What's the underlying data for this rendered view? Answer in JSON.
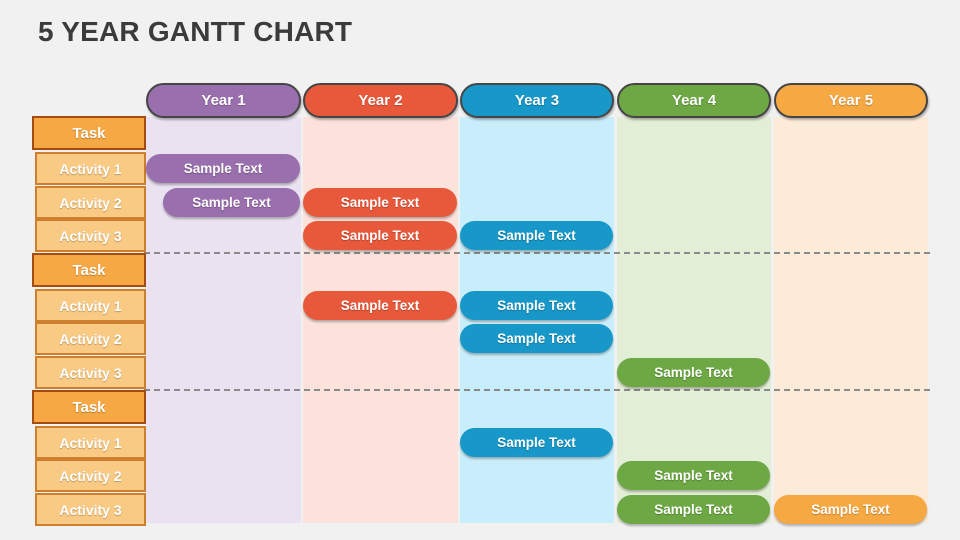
{
  "title": "5 YEAR GANTT CHART",
  "title_color": "#3B3B3B",
  "slide_background": "#F1F1F1",
  "chart_data": {
    "type": "gantt",
    "title": "5 YEAR GANTT CHART",
    "legend_position": "none",
    "grid": "dashed group dividers",
    "columns": [
      {
        "label": "Year 1",
        "color": "#9A6FAE",
        "track_color": "#EAE2F0"
      },
      {
        "label": "Year 2",
        "color": "#E8593C",
        "track_color": "#FBE2DB"
      },
      {
        "label": "Year 3",
        "color": "#1898C8",
        "track_color": "#C9EEFB"
      },
      {
        "label": "Year 4",
        "color": "#6EA845",
        "track_color": "#E3EED6"
      },
      {
        "label": "Year 5",
        "color": "#F6A843",
        "track_color": "#FBEBD8"
      }
    ],
    "row_header": {
      "task_fill": "#F5A843",
      "task_border": "#A34B10",
      "activity_fill": "#F9CA84",
      "activity_border": "#CE7F2E",
      "divider_color": "#8A8A8A"
    },
    "groups": [
      {
        "task": "Task",
        "activities": [
          {
            "name": "Activity 1",
            "bars": [
              {
                "label": "Sample Text",
                "year": "Year 1"
              }
            ]
          },
          {
            "name": "Activity 2",
            "bars": [
              {
                "label": "Sample Text",
                "year": "Year 1",
                "partial_start": true
              },
              {
                "label": "Sample Text",
                "year": "Year 2"
              }
            ]
          },
          {
            "name": "Activity 3",
            "bars": [
              {
                "label": "Sample Text",
                "year": "Year 2"
              },
              {
                "label": "Sample Text",
                "year": "Year 3"
              }
            ]
          }
        ]
      },
      {
        "task": "Task",
        "activities": [
          {
            "name": "Activity 1",
            "bars": [
              {
                "label": "Sample Text",
                "year": "Year 2"
              },
              {
                "label": "Sample Text",
                "year": "Year 3"
              }
            ]
          },
          {
            "name": "Activity 2",
            "bars": [
              {
                "label": "Sample Text",
                "year": "Year 3"
              }
            ]
          },
          {
            "name": "Activity 3",
            "bars": [
              {
                "label": "Sample Text",
                "year": "Year 4"
              }
            ]
          }
        ]
      },
      {
        "task": "Task",
        "activities": [
          {
            "name": "Activity 1",
            "bars": [
              {
                "label": "Sample Text",
                "year": "Year 3"
              }
            ]
          },
          {
            "name": "Activity 2",
            "bars": [
              {
                "label": "Sample Text",
                "year": "Year 4"
              }
            ]
          },
          {
            "name": "Activity 3",
            "bars": [
              {
                "label": "Sample Text",
                "year": "Year 4"
              },
              {
                "label": "Sample Text",
                "year": "Year 5"
              }
            ]
          }
        ]
      }
    ]
  }
}
